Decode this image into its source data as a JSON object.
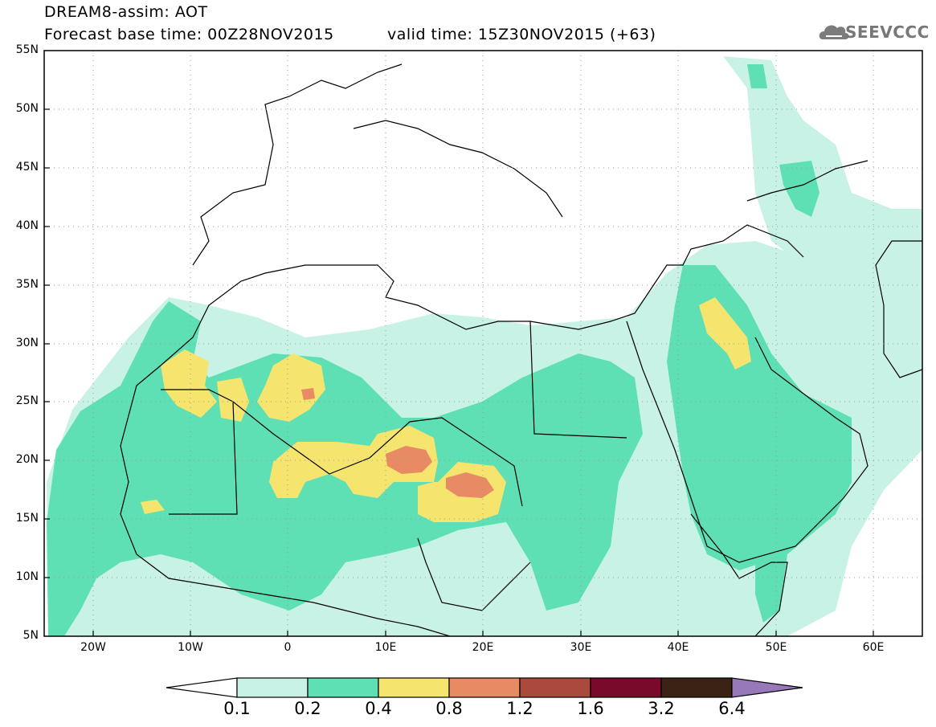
{
  "header": {
    "title": "DREAM8-assim: AOT",
    "base_time": "Forecast base time: 00Z28NOV2015",
    "valid_time": "valid time: 15Z30NOV2015 (+63)",
    "logo_text": "SEEVCCC"
  },
  "map": {
    "lat_labels": [
      "55N",
      "50N",
      "45N",
      "40N",
      "35N",
      "30N",
      "25N",
      "20N",
      "15N",
      "10N",
      "5N"
    ],
    "lon_labels": [
      "20W",
      "10W",
      "0",
      "10E",
      "20E",
      "30E",
      "40E",
      "50E",
      "60E"
    ],
    "lon_range": [
      -25,
      65
    ],
    "lat_range": [
      5,
      55
    ],
    "projection": "lat-lon",
    "grid": "dotted"
  },
  "legend": {
    "labels": [
      "0.1",
      "0.2",
      "0.4",
      "0.8",
      "1.2",
      "1.6",
      "3.2",
      "6.4"
    ],
    "colors": [
      "#ffffff",
      "#c9f2e7",
      "#5ee0b4",
      "#f5e56f",
      "#e88a63",
      "#a94a3c",
      "#7a0a2b",
      "#3a2214",
      "#9778b8"
    ]
  }
}
